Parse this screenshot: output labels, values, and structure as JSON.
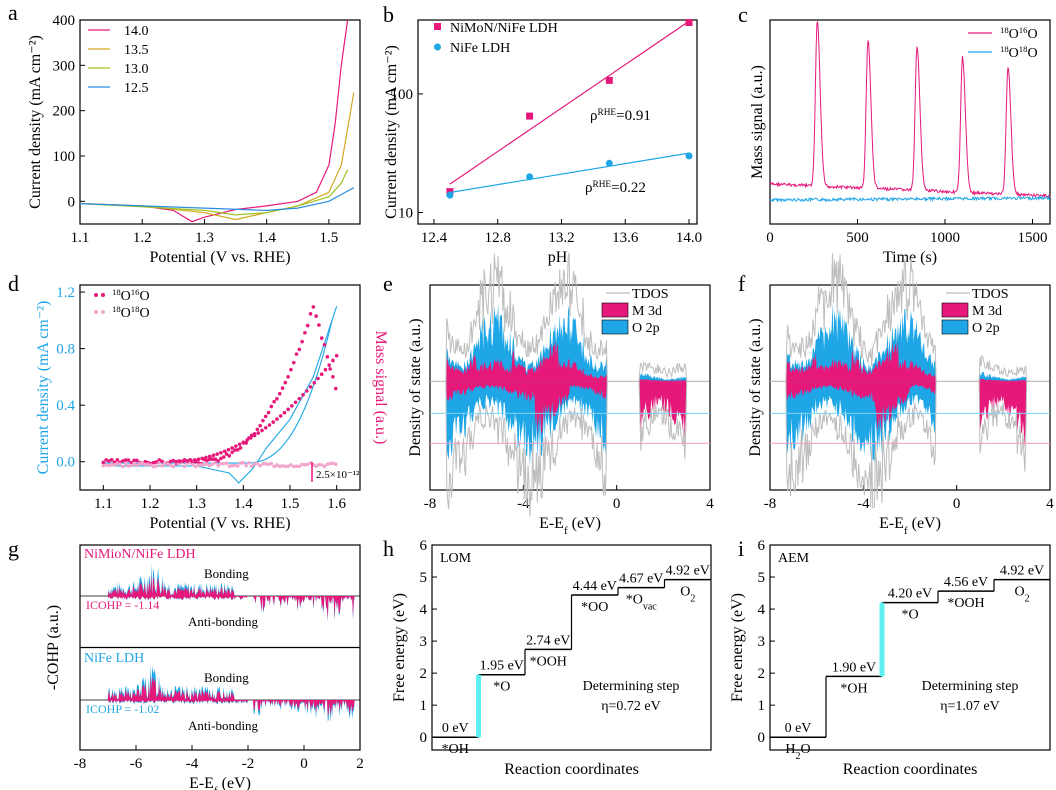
{
  "colors": {
    "magenta": "#e6197a",
    "cyan": "#1ea6e6",
    "yellow": "#d6a820",
    "green": "#9cc41e",
    "blue": "#2a8ee0",
    "gray": "#bdbdbd",
    "pink": "#f3a6cc",
    "bright_cyan": "#5ef0f0",
    "lightcyan": "#7fd3f0",
    "lightpink": "#f4a0c0"
  },
  "chart_data": [
    {
      "id": "a",
      "panel": "a",
      "type": "line",
      "xlabel": "Potential (V vs. RHE)",
      "ylabel": "Current density (mA cm⁻²)",
      "xlim": [
        1.1,
        1.55
      ],
      "ylim": [
        -50,
        400
      ],
      "xticks": [
        "1.1",
        "1.2",
        "1.3",
        "1.4",
        "1.5"
      ],
      "yticks": [
        "0",
        "100",
        "200",
        "300",
        "400"
      ],
      "series": [
        {
          "name": "14.0",
          "color": "#e6197a",
          "x": [
            1.1,
            1.2,
            1.25,
            1.28,
            1.3,
            1.35,
            1.4,
            1.45,
            1.48,
            1.5,
            1.51,
            1.52,
            1.53
          ],
          "y": [
            -5,
            -10,
            -20,
            -45,
            -35,
            -18,
            -10,
            0,
            20,
            80,
            170,
            300,
            400
          ]
        },
        {
          "name": "13.5",
          "color": "#d6a820",
          "x": [
            1.1,
            1.2,
            1.3,
            1.35,
            1.4,
            1.45,
            1.5,
            1.52,
            1.53,
            1.54
          ],
          "y": [
            -5,
            -10,
            -25,
            -40,
            -25,
            -10,
            20,
            80,
            160,
            240
          ]
        },
        {
          "name": "13.0",
          "color": "#9cc41e",
          "x": [
            1.1,
            1.2,
            1.3,
            1.35,
            1.4,
            1.45,
            1.5,
            1.52,
            1.53
          ],
          "y": [
            -5,
            -12,
            -20,
            -30,
            -25,
            -10,
            10,
            40,
            70
          ]
        },
        {
          "name": "12.5",
          "color": "#2a8ee0",
          "x": [
            1.1,
            1.2,
            1.3,
            1.4,
            1.45,
            1.5,
            1.52,
            1.54
          ],
          "y": [
            -5,
            -10,
            -15,
            -20,
            -15,
            0,
            15,
            30
          ]
        }
      ]
    },
    {
      "id": "b",
      "panel": "b",
      "type": "scatter",
      "xlabel": "pH",
      "ylabel": "Current density (mA cm⁻²)",
      "xlim": [
        12.3,
        14.05
      ],
      "ylim": [
        8,
        420
      ],
      "yscale": "log",
      "xticks": [
        "12.4",
        "12.8",
        "13.2",
        "13.6",
        "14.0"
      ],
      "yticks": [
        "10",
        "100"
      ],
      "series": [
        {
          "name": "NiMoN/NiFe LDH",
          "color": "#e6197a",
          "marker": "square",
          "x": [
            12.5,
            13.0,
            13.5,
            14.0
          ],
          "y": [
            15,
            65,
            130,
            400
          ]
        },
        {
          "name": "NiFe LDH",
          "color": "#1ea6e6",
          "marker": "circle",
          "x": [
            12.5,
            13.0,
            13.5,
            14.0
          ],
          "y": [
            14,
            20,
            26,
            30
          ]
        }
      ],
      "fits": [
        {
          "series": "NiMoN/NiFe LDH",
          "label": "ρ",
          "sup": "RHE",
          "value": "=0.91"
        },
        {
          "series": "NiFe LDH",
          "label": "ρ",
          "sup": "RHE",
          "value": "=0.22"
        }
      ]
    },
    {
      "id": "c",
      "panel": "c",
      "type": "line",
      "xlabel": "Time (s)",
      "ylabel": "Mass signal (a.u.)",
      "xlim": [
        0,
        1600
      ],
      "xticks": [
        "0",
        "500",
        "1000",
        "1500"
      ],
      "peaks_s": [
        270,
        560,
        840,
        1100,
        1360
      ],
      "series": [
        {
          "name": "¹⁸O¹⁶O",
          "iso1": "18",
          "el1": "O",
          "iso2": "16",
          "el2": "O",
          "color": "#e6197a"
        },
        {
          "name": "¹⁸O¹⁸O",
          "iso1": "18",
          "el1": "O",
          "iso2": "18",
          "el2": "O",
          "color": "#1ea6e6"
        }
      ]
    },
    {
      "id": "d",
      "panel": "d",
      "type": "line",
      "xlabel": "Potential (V vs. RHE)",
      "ylabel_left": "Current density (mA cm⁻²)",
      "ylabel_right": "Mass signal (a.u.)",
      "xlim": [
        1.05,
        1.65
      ],
      "ylim": [
        -0.2,
        1.25
      ],
      "xticks": [
        "1.1",
        "1.2",
        "1.3",
        "1.4",
        "1.5",
        "1.6"
      ],
      "yticks": [
        "0.0",
        "0.4",
        "0.8",
        "1.2"
      ],
      "scalebar": "2.5×10⁻¹²",
      "series": [
        {
          "name": "¹⁸O¹⁶O",
          "iso1": "18",
          "el1": "O",
          "iso2": "16",
          "el2": "O",
          "color": "#e6197a"
        },
        {
          "name": "¹⁸O¹⁸O",
          "iso1": "18",
          "el1": "O",
          "iso2": "18",
          "el2": "O",
          "color": "#f3a6cc"
        }
      ]
    },
    {
      "id": "e",
      "panel": "e",
      "type": "area",
      "xlabel": "E-E_f (eV)",
      "ylabel": "Density of state (a.u.)",
      "xlim": [
        -8,
        4
      ],
      "xticks": [
        "-8",
        "-4",
        "0",
        "4"
      ],
      "legend": [
        "TDOS",
        "M 3d",
        "O 2p"
      ]
    },
    {
      "id": "f",
      "panel": "f",
      "type": "area",
      "xlabel": "E-E_f (eV)",
      "ylabel": "Density of state (a.u.)",
      "xlim": [
        -8,
        4
      ],
      "xticks": [
        "-8",
        "-4",
        "0",
        "4"
      ],
      "legend": [
        "TDOS",
        "M 3d",
        "O 2p"
      ]
    },
    {
      "id": "g",
      "panel": "g",
      "type": "area",
      "xlabel": "E-E_f (eV)",
      "ylabel": "-COHP (a.u.)",
      "xlim": [
        -8,
        2
      ],
      "xticks": [
        "-8",
        "-6",
        "-4",
        "-2",
        "0",
        "2"
      ],
      "sub": [
        {
          "title": "NiMioN/NiFe LDH",
          "icohp": "ICOHP = -1.14",
          "bonding": "Bonding",
          "antibonding": "Anti-bonding"
        },
        {
          "title": "NiFe LDH",
          "icohp": "ICOHP = -1.02",
          "bonding": "Bonding",
          "antibonding": "Anti-bonding"
        }
      ]
    },
    {
      "id": "h",
      "panel": "h",
      "type": "step",
      "title": "LOM",
      "xlabel": "Reaction coordinates",
      "ylabel": "Free energy (eV)",
      "ylim": [
        -0.4,
        6
      ],
      "yticks": [
        "0",
        "1",
        "2",
        "3",
        "4",
        "5",
        "6"
      ],
      "steps": [
        {
          "energy": 0,
          "value": "0 eV",
          "species": "*OH",
          "sub": ""
        },
        {
          "energy": 1.95,
          "value": "1.95 eV",
          "species": "*O",
          "sub": ""
        },
        {
          "energy": 2.74,
          "value": "2.74 eV",
          "species": "*OOH",
          "sub": ""
        },
        {
          "energy": 4.44,
          "value": "4.44 eV",
          "species": "*OO",
          "sub": ""
        },
        {
          "energy": 4.67,
          "value": "4.67 eV",
          "species": "*O",
          "sub": "vac"
        },
        {
          "energy": 4.92,
          "value": "4.92 eV",
          "species": "O",
          "sub": "2"
        }
      ],
      "determining_step": 1,
      "note": "Determining step",
      "eta": "η=0.72 eV"
    },
    {
      "id": "i",
      "panel": "i",
      "type": "step",
      "title": "AEM",
      "xlabel": "Reaction coordinates",
      "ylabel": "Free energy (eV)",
      "ylim": [
        -0.4,
        6
      ],
      "yticks": [
        "0",
        "1",
        "2",
        "3",
        "4",
        "5",
        "6"
      ],
      "steps": [
        {
          "energy": 0,
          "value": "0 eV",
          "species": "H",
          "sub": "2",
          "tail": "O"
        },
        {
          "energy": 1.9,
          "value": "1.90 eV",
          "species": "*OH",
          "sub": ""
        },
        {
          "energy": 4.2,
          "value": "4.20 eV",
          "species": "*O",
          "sub": ""
        },
        {
          "energy": 4.56,
          "value": "4.56 eV",
          "species": "*OOH",
          "sub": ""
        },
        {
          "energy": 4.92,
          "value": "4.92 eV",
          "species": "O",
          "sub": "2"
        }
      ],
      "determining_step": 2,
      "note": "Determining step",
      "eta": "η=1.07 eV"
    }
  ]
}
